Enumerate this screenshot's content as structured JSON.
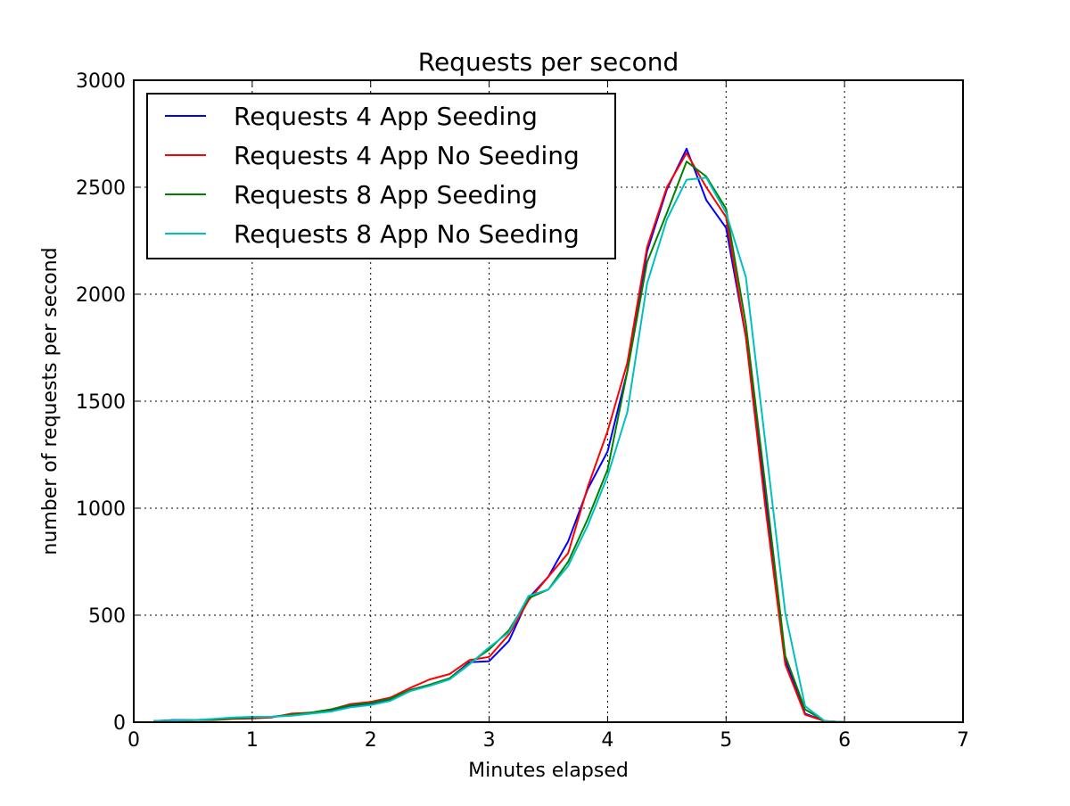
{
  "chart_data": {
    "type": "line",
    "title": "Requests per second",
    "xlabel": "Minutes elapsed",
    "ylabel": "number of requests per second",
    "xlim": [
      0,
      7
    ],
    "ylim": [
      0,
      3000
    ],
    "xticks": [
      "0",
      "1",
      "2",
      "3",
      "4",
      "5",
      "6",
      "7"
    ],
    "yticks": [
      "0",
      "500",
      "1000",
      "1500",
      "2000",
      "2500",
      "3000"
    ],
    "grid": true,
    "legend_position": "top-left",
    "x": [
      0.167,
      0.333,
      0.5,
      0.667,
      0.833,
      1.0,
      1.167,
      1.333,
      1.5,
      1.667,
      1.833,
      2.0,
      2.167,
      2.333,
      2.5,
      2.667,
      2.833,
      3.0,
      3.167,
      3.333,
      3.5,
      3.667,
      3.833,
      4.0,
      4.167,
      4.333,
      4.5,
      4.667,
      4.833,
      5.0,
      5.167,
      5.333,
      5.5,
      5.667,
      5.833,
      6.0
    ],
    "series": [
      {
        "name": "Requests 4 App Seeding",
        "color": "#0000ff",
        "values": [
          5,
          10,
          10,
          12,
          20,
          22,
          25,
          35,
          45,
          55,
          75,
          85,
          105,
          150,
          175,
          205,
          280,
          285,
          380,
          580,
          680,
          845,
          1090,
          1265,
          1640,
          2200,
          2490,
          2680,
          2440,
          2310,
          1800,
          1050,
          290,
          40,
          5,
          0
        ]
      },
      {
        "name": "Requests 4 App No Seeding",
        "color": "#ff0000",
        "values": [
          5,
          8,
          10,
          10,
          15,
          18,
          22,
          40,
          45,
          60,
          85,
          95,
          115,
          160,
          200,
          225,
          290,
          305,
          410,
          570,
          680,
          790,
          1100,
          1360,
          1680,
          2220,
          2500,
          2660,
          2500,
          2360,
          1800,
          1000,
          270,
          35,
          5,
          0
        ]
      },
      {
        "name": "Requests 8 App Seeding",
        "color": "#008000",
        "values": [
          5,
          8,
          10,
          12,
          18,
          22,
          25,
          35,
          45,
          60,
          80,
          90,
          110,
          150,
          175,
          205,
          275,
          340,
          430,
          580,
          620,
          750,
          950,
          1180,
          1640,
          2150,
          2380,
          2620,
          2550,
          2400,
          1860,
          1100,
          310,
          60,
          5,
          0
        ]
      },
      {
        "name": "Requests 8 App No Seeding",
        "color": "#00bfbf",
        "values": [
          5,
          8,
          10,
          15,
          22,
          25,
          25,
          30,
          40,
          50,
          70,
          80,
          100,
          145,
          170,
          200,
          270,
          350,
          420,
          590,
          620,
          730,
          920,
          1150,
          1450,
          2050,
          2350,
          2535,
          2545,
          2380,
          2080,
          1300,
          510,
          75,
          5,
          0
        ]
      }
    ]
  }
}
